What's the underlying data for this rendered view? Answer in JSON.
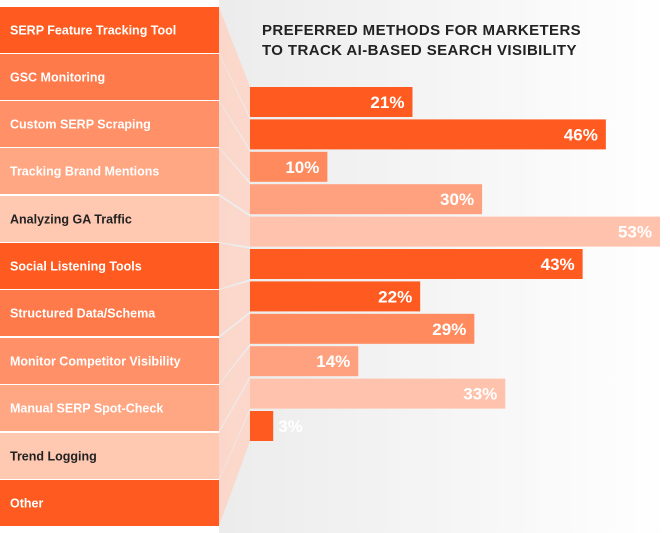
{
  "chart_data": {
    "type": "bar",
    "orientation": "horizontal",
    "title": "PREFERRED METHODS FOR MARKETERS TO TRACK AI-BASED SEARCH VISIBILITY",
    "title_lines": [
      "PREFERRED METHODS FOR MARKETERS",
      "TO TRACK AI-BASED SEARCH VISIBILITY"
    ],
    "categories": [
      "SERP Feature Tracking Tool",
      "GSC Monitoring",
      "Custom SERP Scraping",
      "Tracking Brand Mentions",
      "Analyzing GA Traffic",
      "Social Listening Tools",
      "Structured Data/Schema",
      "Monitor Competitor Visibility",
      "Manual SERP Spot-Check",
      "Trend Logging",
      "Other"
    ],
    "values": [
      21,
      46,
      10,
      30,
      53,
      43,
      22,
      29,
      14,
      33,
      3
    ],
    "value_labels": [
      "21%",
      "46%",
      "10%",
      "30%",
      "53%",
      "43%",
      "22%",
      "29%",
      "14%",
      "33%",
      "3%"
    ],
    "unit": "%",
    "xlim": [
      0,
      53
    ],
    "grid": false,
    "legend": "none",
    "colors": {
      "label_shades": [
        "#ff5a1f",
        "#ff7a4a",
        "#ff9068",
        "#ffa683",
        "#ffc8b1",
        "#ff5a1f",
        "#ff7a4a",
        "#ff9068",
        "#ffa683",
        "#ffc8b1",
        "#ff5a1f"
      ],
      "bar_shades": [
        "#ff5a1f",
        "#ff5a1f",
        "#ff8a5e",
        "#ffa07f",
        "#ffc3ad",
        "#ff5a1f",
        "#ff5a1f",
        "#ff8a5e",
        "#ffa07f",
        "#ffc3ad",
        "#ff5a1f"
      ],
      "value_label_dark_bar": "#ff5a1f",
      "connector": "#ffd0bf",
      "title": "#222222",
      "label_text_light": "#ffffff",
      "label_text_dark": "#222222"
    }
  }
}
